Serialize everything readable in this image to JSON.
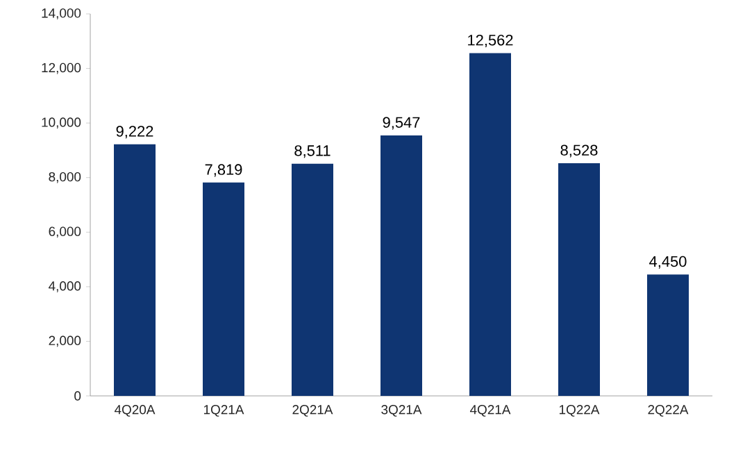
{
  "chart_data": {
    "type": "bar",
    "categories": [
      "4Q20A",
      "1Q21A",
      "2Q21A",
      "3Q21A",
      "4Q21A",
      "1Q22A",
      "2Q22A"
    ],
    "values": [
      9222,
      7819,
      8511,
      9547,
      12562,
      8528,
      4450
    ],
    "value_labels": [
      "9,222",
      "7,819",
      "8,511",
      "9,547",
      "12,562",
      "8,528",
      "4,450"
    ],
    "color": "#0f3572",
    "ylim": [
      0,
      14000
    ],
    "yticks": [
      {
        "value": 0,
        "label": "0"
      },
      {
        "value": 2000,
        "label": "2,000"
      },
      {
        "value": 4000,
        "label": "4,000"
      },
      {
        "value": 6000,
        "label": "6,000"
      },
      {
        "value": 8000,
        "label": "8,000"
      },
      {
        "value": 10000,
        "label": "10,000"
      },
      {
        "value": 12000,
        "label": "12,000"
      },
      {
        "value": 14000,
        "label": "14,000"
      }
    ],
    "grid": false
  }
}
